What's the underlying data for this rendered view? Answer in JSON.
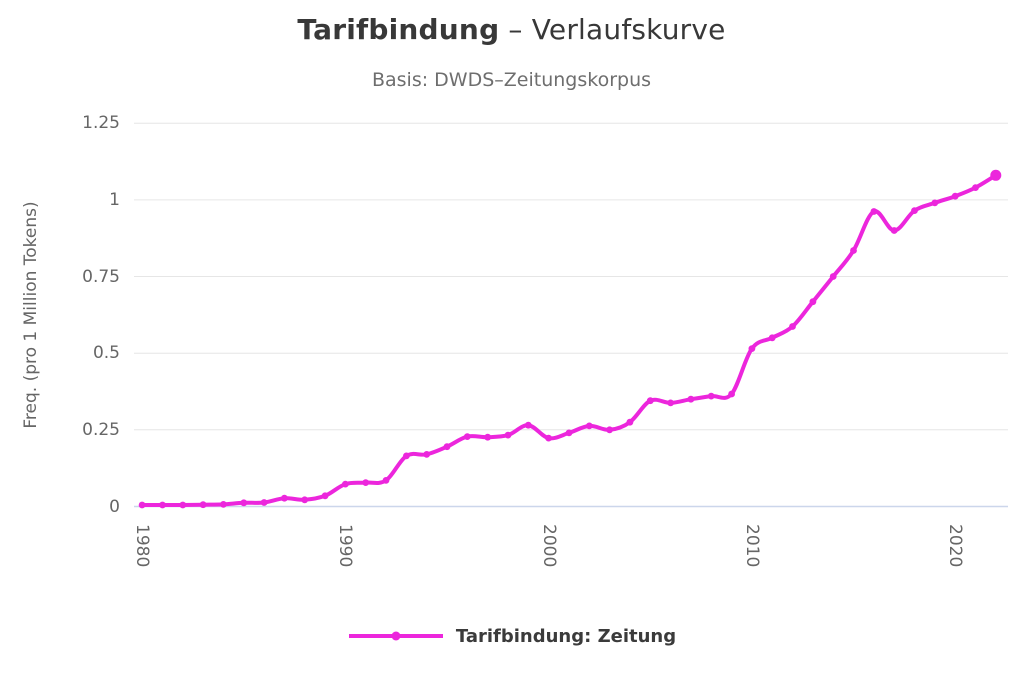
{
  "header": {
    "title_word": "Tarifbindung",
    "title_rest": " – Verlaufskurve",
    "subtitle": "Basis: DWDS–Zeitungskorpus"
  },
  "chart_data": {
    "type": "line",
    "title": "Tarifbindung – Verlaufskurve",
    "subtitle": "Basis: DWDS–Zeitungskorpus",
    "xlabel": "",
    "ylabel": "Freq. (pro 1 Million Tokens)",
    "grid": "horizontal",
    "legend_position": "bottom",
    "xlim": [
      1979.6,
      2022.6
    ],
    "ylim": [
      0,
      1.25
    ],
    "xticks": [
      1980,
      1990,
      2000,
      2010,
      2020
    ],
    "yticks": [
      0,
      0.25,
      0.5,
      0.75,
      1,
      1.25
    ],
    "series": [
      {
        "name": "Tarifbindung: Zeitung",
        "color": "#ec26dc",
        "marker": "circle",
        "smooth": true,
        "x": [
          1980,
          1981,
          1982,
          1983,
          1984,
          1985,
          1986,
          1987,
          1988,
          1989,
          1990,
          1991,
          1992,
          1993,
          1994,
          1995,
          1996,
          1997,
          1998,
          1999,
          2000,
          2001,
          2002,
          2003,
          2004,
          2005,
          2006,
          2007,
          2008,
          2009,
          2010,
          2011,
          2012,
          2013,
          2014,
          2015,
          2016,
          2017,
          2018,
          2019,
          2020,
          2021,
          2022
        ],
        "values": [
          0.005,
          0.005,
          0.005,
          0.006,
          0.007,
          0.012,
          0.013,
          0.027,
          0.022,
          0.035,
          0.073,
          0.078,
          0.085,
          0.165,
          0.17,
          0.195,
          0.228,
          0.226,
          0.233,
          0.265,
          0.223,
          0.24,
          0.263,
          0.25,
          0.275,
          0.345,
          0.338,
          0.35,
          0.36,
          0.367,
          0.515,
          0.55,
          0.587,
          0.668,
          0.75,
          0.835,
          0.962,
          0.9,
          0.965,
          0.99,
          1.012,
          1.04,
          1.08
        ]
      }
    ]
  },
  "colors": {
    "series_line": "#ec26dc",
    "title_text": "#383838",
    "subtitle_text": "#6e6e6e",
    "tick_text": "#666666",
    "gridline": "#e6e6e6",
    "axis_baseline": "#ccd6eb",
    "background": "#ffffff"
  }
}
